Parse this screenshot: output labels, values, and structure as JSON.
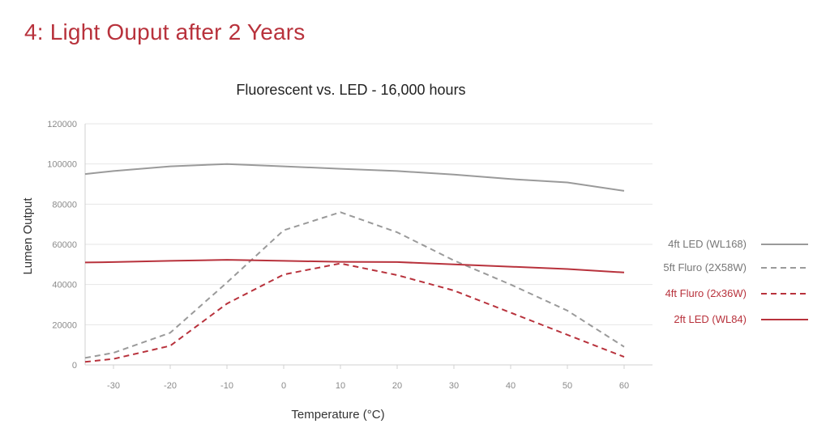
{
  "slide": {
    "title": "4: Light Ouput after 2 Years"
  },
  "colors": {
    "gray": "#9a9a9a",
    "red": "#b8323c",
    "grid": "#e6e6e6",
    "axis": "#d0d0d0"
  },
  "chart_data": {
    "type": "line",
    "title": "Fluorescent vs. LED - 16,000 hours",
    "xlabel": "Temperature (°C)",
    "ylabel": "Lumen Output",
    "x": [
      -35,
      -30,
      -20,
      -10,
      0,
      10,
      20,
      30,
      40,
      50,
      60
    ],
    "xticks": [
      "-30",
      "-20",
      "-10",
      "0",
      "10",
      "20",
      "30",
      "40",
      "50",
      "60"
    ],
    "yticks": [
      "0",
      "20000",
      "40000",
      "60000",
      "80000",
      "100000",
      "120000"
    ],
    "xlim": [
      -35,
      65
    ],
    "ylim": [
      0,
      120000
    ],
    "grid": "horizontal",
    "legend_position": "right",
    "series": [
      {
        "name": "4ft LED (WL168)",
        "color": "#9a9a9a",
        "dash": "solid",
        "values": [
          95000,
          96500,
          98800,
          100000,
          98800,
          97600,
          96500,
          94700,
          92500,
          90800,
          86600
        ]
      },
      {
        "name": "5ft Fluro (2X58W)",
        "color": "#9a9a9a",
        "dash": "dashed",
        "values": [
          3500,
          6000,
          16000,
          41000,
          67000,
          76000,
          66000,
          52000,
          40000,
          27000,
          9000
        ]
      },
      {
        "name": "4ft Fluro (2x36W)",
        "color": "#b8323c",
        "dash": "dashed",
        "values": [
          1500,
          3000,
          9500,
          30500,
          45000,
          50500,
          44700,
          37000,
          26000,
          15000,
          4000
        ]
      },
      {
        "name": "2ft LED (WL84)",
        "color": "#b8323c",
        "dash": "solid",
        "values": [
          51000,
          51200,
          51800,
          52300,
          51800,
          51300,
          51200,
          50000,
          48900,
          47700,
          46000
        ]
      }
    ]
  }
}
